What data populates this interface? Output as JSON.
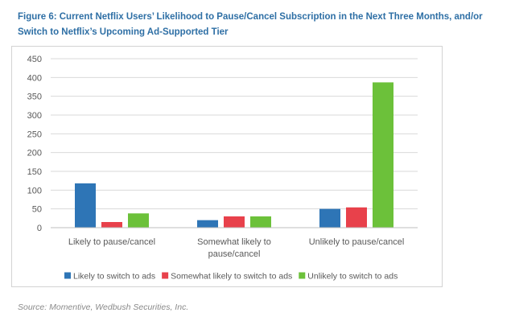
{
  "figure": {
    "title": "Figure 6: Current Netflix Users’ Likelihood to Pause/Cancel Subscription in the Next Three Months, and/or Switch to Netflix’s Upcoming Ad-Supported Tier",
    "source": "Source: Momentive, Wedbush Securities, Inc."
  },
  "chart_data": {
    "type": "bar",
    "title": "",
    "xlabel": "",
    "ylabel": "",
    "ylim": [
      0,
      450
    ],
    "yticks": [
      0,
      50,
      100,
      150,
      200,
      250,
      300,
      350,
      400,
      450
    ],
    "grid": true,
    "legend_position": "bottom",
    "categories": [
      "Likely to pause/cancel",
      "Somewhat likely to pause/cancel",
      "Unlikely to pause/cancel"
    ],
    "category_lines": [
      [
        "Likely to pause/cancel"
      ],
      [
        "Somewhat likely to",
        "pause/cancel"
      ],
      [
        "Unlikely to pause/cancel"
      ]
    ],
    "series": [
      {
        "name": "Likely to switch to ads",
        "color": "#2e75b6",
        "values": [
          118,
          20,
          50
        ]
      },
      {
        "name": "Somewhat likely to switch to ads",
        "color": "#e8414b",
        "values": [
          15,
          30,
          54
        ]
      },
      {
        "name": "Unlikely to switch to ads",
        "color": "#6cc13a",
        "values": [
          38,
          30,
          387
        ]
      }
    ]
  }
}
